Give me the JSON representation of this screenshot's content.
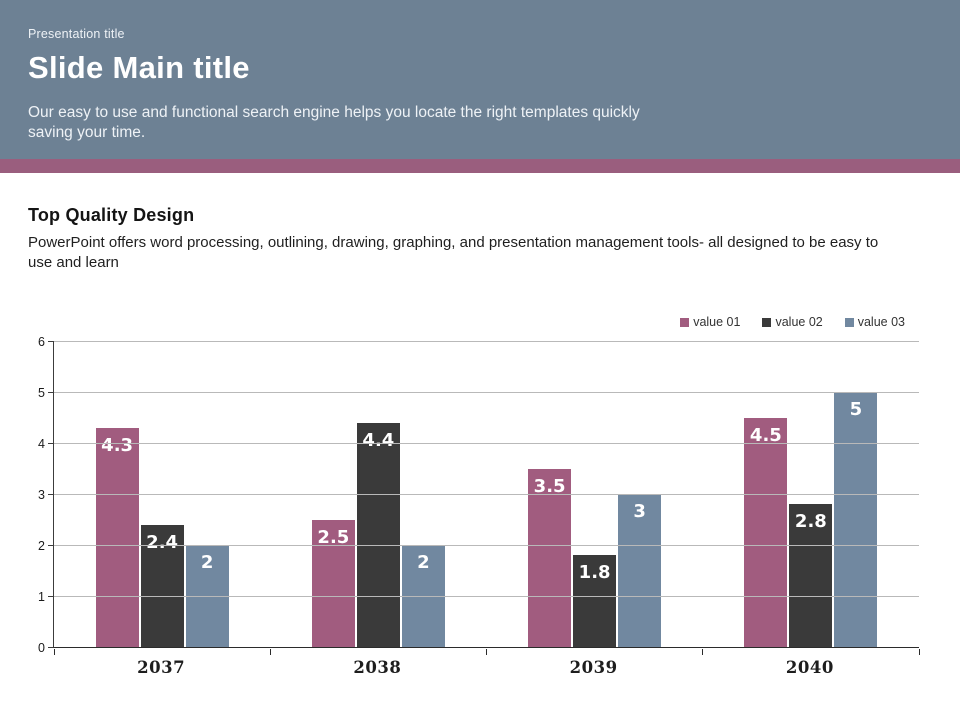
{
  "header": {
    "eyebrow": "Presentation title",
    "title": "Slide Main title",
    "subtitle": "Our easy to use and functional search engine helps you locate the right templates quickly saving your time."
  },
  "section": {
    "heading": "Top Quality Design",
    "body": "PowerPoint offers word processing, outlining, drawing, graphing, and presentation management tools- all designed to be easy to use and learn"
  },
  "colors": {
    "header_bg": "#6d8194",
    "accent_bar": "#9a5e7e",
    "grid": "#b9b9b9",
    "axis": "#3c3c3c",
    "value_label_text": "#ffffff"
  },
  "chart_data": {
    "type": "bar",
    "categories": [
      "2037",
      "2038",
      "2039",
      "2040"
    ],
    "series": [
      {
        "name": "value 01",
        "color": "#a15c7f",
        "values": [
          4.3,
          2.5,
          3.5,
          4.5
        ]
      },
      {
        "name": "value 02",
        "color": "#3a3a3a",
        "values": [
          2.4,
          4.4,
          1.8,
          2.8
        ]
      },
      {
        "name": "value 03",
        "color": "#7188a0",
        "values": [
          2,
          2,
          3,
          5
        ]
      }
    ],
    "ylim": [
      0,
      6
    ],
    "yticks": [
      0,
      1,
      2,
      3,
      4,
      5,
      6
    ],
    "grid": true,
    "legend_position": "top-right",
    "data_labels": true
  }
}
